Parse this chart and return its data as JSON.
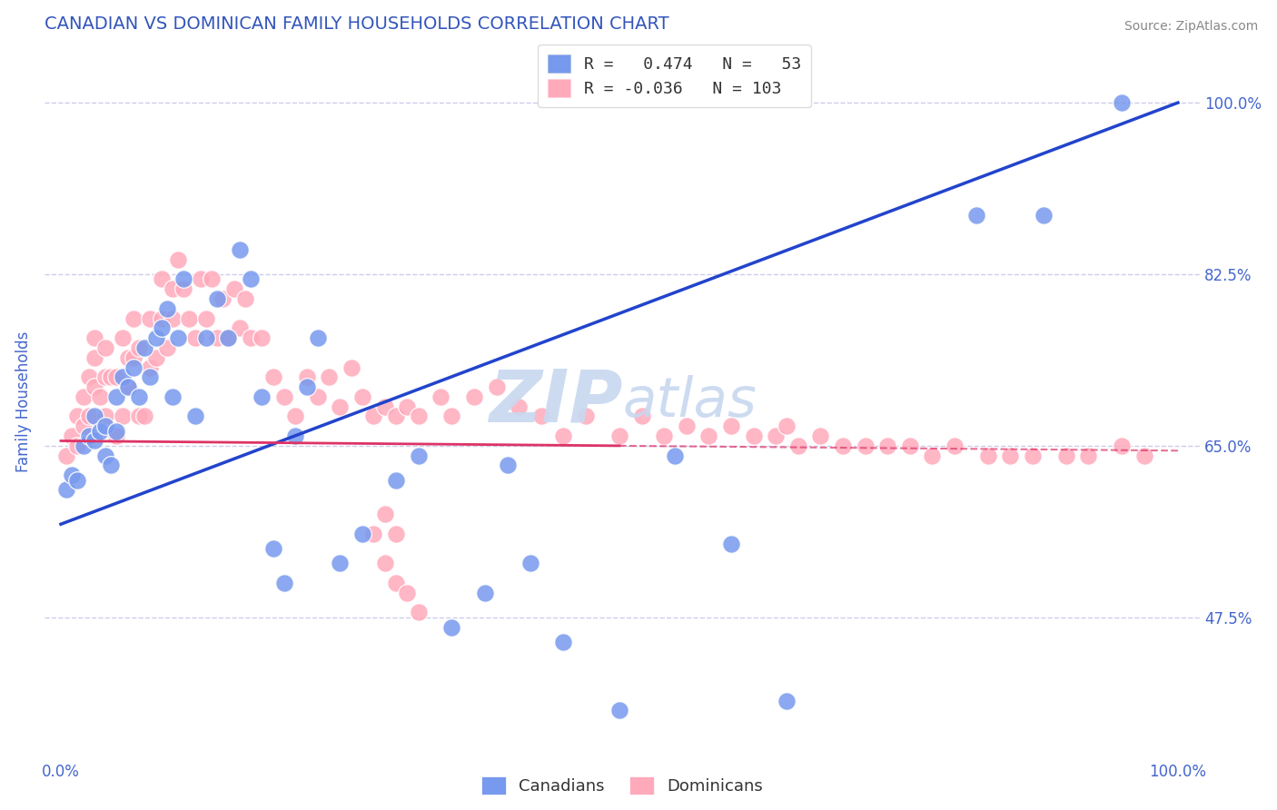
{
  "title": "CANADIAN VS DOMINICAN FAMILY HOUSEHOLDS CORRELATION CHART",
  "source": "Source: ZipAtlas.com",
  "ylabel": "Family Households",
  "title_color": "#3355bb",
  "axis_color": "#4466cc",
  "background_color": "#ffffff",
  "ytick_values": [
    0.475,
    0.65,
    0.825,
    1.0
  ],
  "ytick_labels": [
    "47.5%",
    "65.0%",
    "82.5%",
    "100.0%"
  ],
  "canadian_R": 0.474,
  "canadian_N": 53,
  "dominican_R": -0.036,
  "dominican_N": 103,
  "canadian_color": "#7799ee",
  "dominican_color": "#ffaabb",
  "canadian_line_color": "#2244cc",
  "dominican_line_color": "#dd3366",
  "grid_color": "#ccccee",
  "watermark_color": "#c8d8f0",
  "canadians_x": [
    0.005,
    0.01,
    0.015,
    0.02,
    0.025,
    0.03,
    0.03,
    0.035,
    0.04,
    0.04,
    0.045,
    0.05,
    0.05,
    0.055,
    0.06,
    0.065,
    0.07,
    0.075,
    0.08,
    0.085,
    0.09,
    0.095,
    0.1,
    0.105,
    0.11,
    0.12,
    0.13,
    0.14,
    0.15,
    0.16,
    0.17,
    0.18,
    0.19,
    0.2,
    0.21,
    0.22,
    0.23,
    0.25,
    0.27,
    0.3,
    0.32,
    0.35,
    0.38,
    0.4,
    0.42,
    0.45,
    0.5,
    0.55,
    0.6,
    0.65,
    0.82,
    0.88,
    0.95
  ],
  "canadians_y": [
    0.605,
    0.62,
    0.615,
    0.65,
    0.66,
    0.655,
    0.68,
    0.665,
    0.64,
    0.67,
    0.63,
    0.665,
    0.7,
    0.72,
    0.71,
    0.73,
    0.7,
    0.75,
    0.72,
    0.76,
    0.77,
    0.79,
    0.7,
    0.76,
    0.82,
    0.68,
    0.76,
    0.8,
    0.76,
    0.85,
    0.82,
    0.7,
    0.545,
    0.51,
    0.66,
    0.71,
    0.76,
    0.53,
    0.56,
    0.615,
    0.64,
    0.465,
    0.5,
    0.63,
    0.53,
    0.45,
    0.38,
    0.64,
    0.55,
    0.39,
    0.885,
    0.885,
    1.0
  ],
  "dominicans_x": [
    0.005,
    0.01,
    0.015,
    0.015,
    0.02,
    0.02,
    0.025,
    0.025,
    0.03,
    0.03,
    0.03,
    0.035,
    0.04,
    0.04,
    0.04,
    0.045,
    0.05,
    0.05,
    0.055,
    0.055,
    0.06,
    0.06,
    0.065,
    0.065,
    0.07,
    0.07,
    0.075,
    0.08,
    0.08,
    0.085,
    0.09,
    0.09,
    0.095,
    0.1,
    0.1,
    0.105,
    0.11,
    0.115,
    0.12,
    0.125,
    0.13,
    0.135,
    0.14,
    0.145,
    0.15,
    0.155,
    0.16,
    0.165,
    0.17,
    0.18,
    0.19,
    0.2,
    0.21,
    0.22,
    0.23,
    0.24,
    0.25,
    0.26,
    0.27,
    0.28,
    0.29,
    0.3,
    0.31,
    0.32,
    0.34,
    0.35,
    0.37,
    0.39,
    0.41,
    0.43,
    0.45,
    0.47,
    0.5,
    0.52,
    0.54,
    0.56,
    0.58,
    0.6,
    0.62,
    0.64,
    0.65,
    0.66,
    0.68,
    0.7,
    0.72,
    0.74,
    0.76,
    0.78,
    0.8,
    0.83,
    0.85,
    0.87,
    0.9,
    0.92,
    0.95,
    0.97,
    0.28,
    0.29,
    0.29,
    0.3,
    0.3,
    0.31,
    0.32
  ],
  "dominicans_y": [
    0.64,
    0.66,
    0.68,
    0.65,
    0.7,
    0.67,
    0.68,
    0.72,
    0.71,
    0.74,
    0.76,
    0.7,
    0.68,
    0.72,
    0.75,
    0.72,
    0.66,
    0.72,
    0.68,
    0.76,
    0.71,
    0.74,
    0.78,
    0.74,
    0.68,
    0.75,
    0.68,
    0.73,
    0.78,
    0.74,
    0.78,
    0.82,
    0.75,
    0.81,
    0.78,
    0.84,
    0.81,
    0.78,
    0.76,
    0.82,
    0.78,
    0.82,
    0.76,
    0.8,
    0.76,
    0.81,
    0.77,
    0.8,
    0.76,
    0.76,
    0.72,
    0.7,
    0.68,
    0.72,
    0.7,
    0.72,
    0.69,
    0.73,
    0.7,
    0.68,
    0.69,
    0.68,
    0.69,
    0.68,
    0.7,
    0.68,
    0.7,
    0.71,
    0.69,
    0.68,
    0.66,
    0.68,
    0.66,
    0.68,
    0.66,
    0.67,
    0.66,
    0.67,
    0.66,
    0.66,
    0.67,
    0.65,
    0.66,
    0.65,
    0.65,
    0.65,
    0.65,
    0.64,
    0.65,
    0.64,
    0.64,
    0.64,
    0.64,
    0.64,
    0.65,
    0.64,
    0.56,
    0.58,
    0.53,
    0.56,
    0.51,
    0.5,
    0.48
  ]
}
